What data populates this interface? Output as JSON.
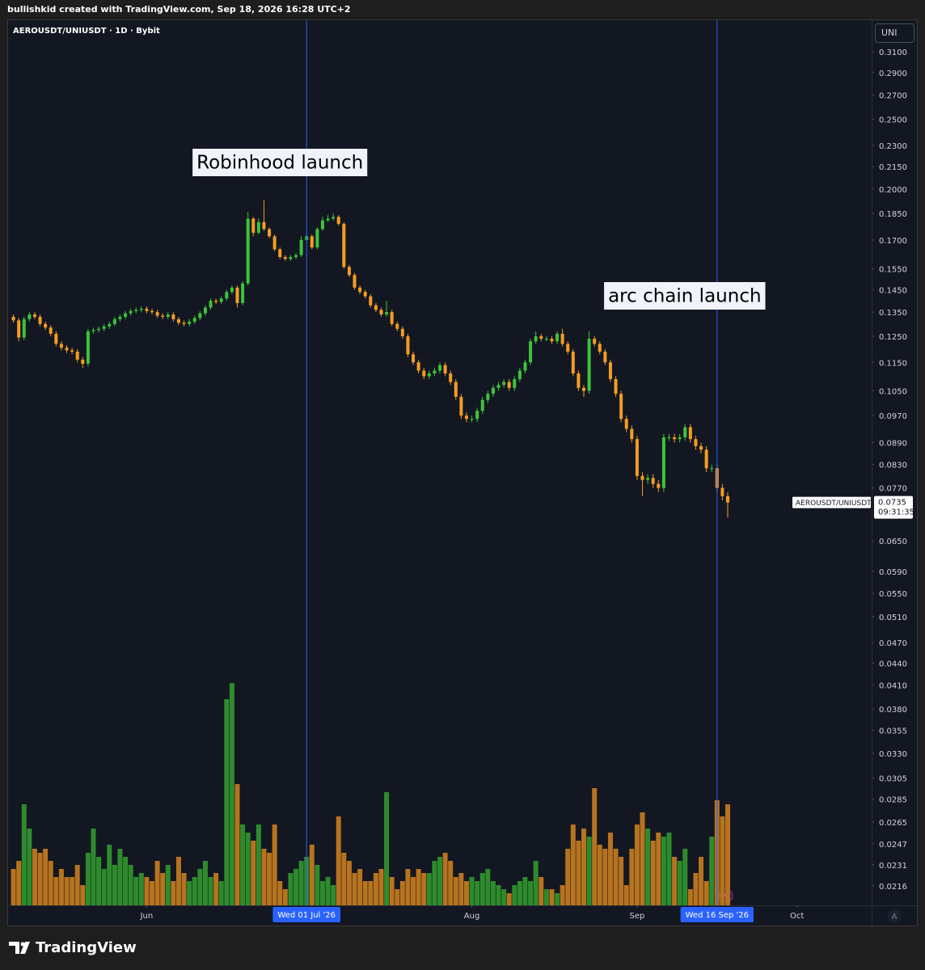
{
  "chart_data": {
    "type": "candlestick",
    "credit": "bullishkid created with TradingView.com, Sep 18, 2026 16:28 UTC+2",
    "title": "AEROUSDT/UNIUSDT · 1D · Bybit",
    "scale_label": "UNI",
    "symbol_label": "AEROUSDT/UNIUSDT",
    "countdown": "09:31:35",
    "brand": "TradingView",
    "auto_label": "A",
    "log_scale": true,
    "grid": false,
    "up_color": "#3cc43a",
    "down_color": "#f59c22",
    "volume_up_color": "#2e8b2c",
    "volume_down_color": "#b7731e",
    "line_color": "#2962ff",
    "x": [
      "2026-05-07",
      "2026-05-08",
      "2026-05-09",
      "2026-05-10",
      "2026-05-11",
      "2026-05-12",
      "2026-05-13",
      "2026-05-14",
      "2026-05-15",
      "2026-05-16",
      "2026-05-17",
      "2026-05-18",
      "2026-05-19",
      "2026-05-20",
      "2026-05-21",
      "2026-05-22",
      "2026-05-23",
      "2026-05-24",
      "2026-05-25",
      "2026-05-26",
      "2026-05-27",
      "2026-05-28",
      "2026-05-29",
      "2026-05-30",
      "2026-05-31",
      "2026-06-01",
      "2026-06-02",
      "2026-06-03",
      "2026-06-04",
      "2026-06-05",
      "2026-06-06",
      "2026-06-07",
      "2026-06-08",
      "2026-06-09",
      "2026-06-10",
      "2026-06-11",
      "2026-06-12",
      "2026-06-13",
      "2026-06-14",
      "2026-06-15",
      "2026-06-16",
      "2026-06-17",
      "2026-06-18",
      "2026-06-19",
      "2026-06-20",
      "2026-06-21",
      "2026-06-22",
      "2026-06-23",
      "2026-06-24",
      "2026-06-25",
      "2026-06-26",
      "2026-06-27",
      "2026-06-28",
      "2026-06-29",
      "2026-06-30",
      "2026-07-01",
      "2026-07-02",
      "2026-07-03",
      "2026-07-04",
      "2026-07-05",
      "2026-07-06",
      "2026-07-07",
      "2026-07-08",
      "2026-07-09",
      "2026-07-10",
      "2026-07-11",
      "2026-07-12",
      "2026-07-13",
      "2026-07-14",
      "2026-07-15",
      "2026-07-16",
      "2026-07-17",
      "2026-07-18",
      "2026-07-19",
      "2026-07-20",
      "2026-07-21",
      "2026-07-22",
      "2026-07-23",
      "2026-07-24",
      "2026-07-25",
      "2026-07-26",
      "2026-07-27",
      "2026-07-28",
      "2026-07-29",
      "2026-07-30",
      "2026-07-31",
      "2026-08-01",
      "2026-08-02",
      "2026-08-03",
      "2026-08-04",
      "2026-08-05",
      "2026-08-06",
      "2026-08-07",
      "2026-08-08",
      "2026-08-09",
      "2026-08-10",
      "2026-08-11",
      "2026-08-12",
      "2026-08-13",
      "2026-08-14",
      "2026-08-15",
      "2026-08-16",
      "2026-08-17",
      "2026-08-18",
      "2026-08-19",
      "2026-08-20",
      "2026-08-21",
      "2026-08-22",
      "2026-08-23",
      "2026-08-24",
      "2026-08-25",
      "2026-08-26",
      "2026-08-27",
      "2026-08-28",
      "2026-08-29",
      "2026-08-30",
      "2026-08-31",
      "2026-09-01",
      "2026-09-02",
      "2026-09-03",
      "2026-09-04",
      "2026-09-05",
      "2026-09-06",
      "2026-09-07",
      "2026-09-08",
      "2026-09-09",
      "2026-09-10",
      "2026-09-11",
      "2026-09-12",
      "2026-09-13",
      "2026-09-14",
      "2026-09-15",
      "2026-09-16",
      "2026-09-17",
      "2026-09-18"
    ],
    "open": [
      0.133,
      0.1315,
      0.1245,
      0.132,
      0.134,
      0.133,
      0.13,
      0.1285,
      0.126,
      0.122,
      0.1205,
      0.1195,
      0.119,
      0.116,
      0.1145,
      0.127,
      0.1275,
      0.128,
      0.129,
      0.13,
      0.132,
      0.133,
      0.1345,
      0.1355,
      0.136,
      0.1365,
      0.1355,
      0.135,
      0.1335,
      0.133,
      0.134,
      0.132,
      0.1305,
      0.13,
      0.131,
      0.1325,
      0.1345,
      0.137,
      0.14,
      0.1395,
      0.141,
      0.144,
      0.146,
      0.139,
      0.148,
      0.182,
      0.174,
      0.18,
      0.176,
      0.172,
      0.165,
      0.161,
      0.16,
      0.161,
      0.162,
      0.17,
      0.172,
      0.166,
      0.176,
      0.181,
      0.182,
      0.183,
      0.179,
      0.156,
      0.152,
      0.146,
      0.144,
      0.142,
      0.138,
      0.136,
      0.134,
      0.135,
      0.13,
      0.128,
      0.125,
      0.118,
      0.115,
      0.112,
      0.11,
      0.111,
      0.112,
      0.114,
      0.111,
      0.108,
      0.103,
      0.097,
      0.096,
      0.096,
      0.0985,
      0.102,
      0.104,
      0.106,
      0.107,
      0.108,
      0.106,
      0.109,
      0.112,
      0.115,
      0.123,
      0.125,
      0.124,
      0.124,
      0.123,
      0.126,
      0.122,
      0.119,
      0.111,
      0.106,
      0.105,
      0.124,
      0.122,
      0.119,
      0.115,
      0.109,
      0.104,
      0.096,
      0.093,
      0.09,
      0.08,
      0.079,
      0.0795,
      0.078,
      0.077,
      0.0905,
      0.0905,
      0.09,
      0.0905,
      0.0935,
      0.09,
      0.088,
      0.087,
      0.082,
      0.082,
      0.077,
      0.075
    ],
    "high": [
      0.134,
      0.1325,
      0.133,
      0.135,
      0.135,
      0.134,
      0.131,
      0.1295,
      0.127,
      0.123,
      0.1215,
      0.1205,
      0.12,
      0.117,
      0.128,
      0.1285,
      0.129,
      0.13,
      0.131,
      0.133,
      0.134,
      0.1355,
      0.1365,
      0.137,
      0.1375,
      0.1375,
      0.1365,
      0.136,
      0.1345,
      0.135,
      0.135,
      0.133,
      0.1315,
      0.132,
      0.1335,
      0.1355,
      0.138,
      0.141,
      0.141,
      0.142,
      0.145,
      0.147,
      0.147,
      0.149,
      0.186,
      0.183,
      0.182,
      0.193,
      0.177,
      0.173,
      0.166,
      0.162,
      0.162,
      0.163,
      0.172,
      0.173,
      0.173,
      0.177,
      0.183,
      0.184,
      0.185,
      0.184,
      0.18,
      0.157,
      0.153,
      0.147,
      0.145,
      0.143,
      0.139,
      0.137,
      0.14,
      0.136,
      0.131,
      0.129,
      0.126,
      0.119,
      0.116,
      0.113,
      0.112,
      0.113,
      0.115,
      0.115,
      0.112,
      0.109,
      0.104,
      0.098,
      0.097,
      0.0995,
      0.103,
      0.105,
      0.107,
      0.108,
      0.109,
      0.109,
      0.11,
      0.113,
      0.116,
      0.124,
      0.127,
      0.126,
      0.125,
      0.125,
      0.127,
      0.128,
      0.123,
      0.12,
      0.112,
      0.107,
      0.127,
      0.125,
      0.123,
      0.12,
      0.116,
      0.11,
      0.105,
      0.097,
      0.094,
      0.091,
      0.081,
      0.0805,
      0.0805,
      0.079,
      0.0915,
      0.0915,
      0.0915,
      0.0915,
      0.0945,
      0.0945,
      0.091,
      0.089,
      0.088,
      0.083,
      0.083,
      0.078,
      0.076
    ],
    "low": [
      0.1305,
      0.123,
      0.1235,
      0.131,
      0.132,
      0.129,
      0.1275,
      0.125,
      0.121,
      0.1195,
      0.1185,
      0.118,
      0.115,
      0.113,
      0.1135,
      0.126,
      0.1265,
      0.127,
      0.128,
      0.129,
      0.131,
      0.132,
      0.1335,
      0.1345,
      0.135,
      0.1345,
      0.134,
      0.1325,
      0.132,
      0.132,
      0.131,
      0.1295,
      0.129,
      0.129,
      0.13,
      0.1315,
      0.1335,
      0.136,
      0.1385,
      0.1385,
      0.14,
      0.143,
      0.137,
      0.138,
      0.147,
      0.172,
      0.173,
      0.175,
      0.171,
      0.164,
      0.16,
      0.159,
      0.159,
      0.16,
      0.161,
      0.169,
      0.165,
      0.165,
      0.175,
      0.18,
      0.181,
      0.178,
      0.155,
      0.151,
      0.145,
      0.143,
      0.141,
      0.137,
      0.135,
      0.133,
      0.133,
      0.129,
      0.127,
      0.124,
      0.117,
      0.114,
      0.111,
      0.109,
      0.109,
      0.11,
      0.111,
      0.11,
      0.107,
      0.102,
      0.096,
      0.095,
      0.095,
      0.095,
      0.0975,
      0.101,
      0.103,
      0.105,
      0.106,
      0.105,
      0.105,
      0.108,
      0.111,
      0.114,
      0.122,
      0.123,
      0.123,
      0.122,
      0.122,
      0.121,
      0.118,
      0.11,
      0.105,
      0.103,
      0.104,
      0.121,
      0.118,
      0.114,
      0.108,
      0.103,
      0.095,
      0.092,
      0.089,
      0.079,
      0.075,
      0.078,
      0.077,
      0.076,
      0.076,
      0.0895,
      0.089,
      0.089,
      0.0895,
      0.089,
      0.087,
      0.086,
      0.081,
      0.081,
      0.076,
      0.074,
      0.07
    ],
    "close": [
      0.1315,
      0.1245,
      0.132,
      0.134,
      0.133,
      0.13,
      0.1285,
      0.126,
      0.122,
      0.1205,
      0.1195,
      0.119,
      0.116,
      0.1145,
      0.127,
      0.1275,
      0.128,
      0.129,
      0.13,
      0.132,
      0.133,
      0.1345,
      0.1355,
      0.136,
      0.1365,
      0.1355,
      0.135,
      0.1335,
      0.133,
      0.134,
      0.132,
      0.1305,
      0.13,
      0.131,
      0.1325,
      0.1345,
      0.137,
      0.14,
      0.1395,
      0.141,
      0.144,
      0.146,
      0.139,
      0.148,
      0.182,
      0.174,
      0.18,
      0.176,
      0.172,
      0.165,
      0.161,
      0.16,
      0.161,
      0.162,
      0.17,
      0.172,
      0.166,
      0.176,
      0.181,
      0.182,
      0.183,
      0.179,
      0.156,
      0.152,
      0.146,
      0.144,
      0.142,
      0.138,
      0.136,
      0.134,
      0.135,
      0.13,
      0.128,
      0.125,
      0.118,
      0.115,
      0.112,
      0.11,
      0.111,
      0.112,
      0.114,
      0.111,
      0.108,
      0.103,
      0.097,
      0.096,
      0.096,
      0.0985,
      0.102,
      0.104,
      0.106,
      0.107,
      0.108,
      0.106,
      0.109,
      0.112,
      0.115,
      0.123,
      0.125,
      0.124,
      0.124,
      0.123,
      0.126,
      0.122,
      0.119,
      0.111,
      0.106,
      0.105,
      0.124,
      0.122,
      0.119,
      0.115,
      0.109,
      0.104,
      0.096,
      0.093,
      0.09,
      0.08,
      0.079,
      0.0795,
      0.078,
      0.077,
      0.0905,
      0.0905,
      0.09,
      0.0905,
      0.0935,
      0.09,
      0.088,
      0.087,
      0.082,
      0.082,
      0.077,
      0.075,
      0.0735
    ],
    "volume": [
      45,
      55,
      125,
      95,
      70,
      65,
      70,
      55,
      35,
      45,
      35,
      35,
      50,
      25,
      65,
      95,
      60,
      45,
      75,
      50,
      70,
      60,
      50,
      35,
      40,
      35,
      30,
      55,
      40,
      50,
      30,
      60,
      40,
      30,
      35,
      45,
      55,
      35,
      40,
      30,
      255,
      275,
      150,
      100,
      90,
      80,
      100,
      70,
      65,
      100,
      30,
      20,
      40,
      45,
      55,
      60,
      75,
      50,
      30,
      35,
      25,
      110,
      65,
      55,
      40,
      45,
      30,
      30,
      40,
      45,
      140,
      35,
      20,
      30,
      45,
      35,
      45,
      40,
      40,
      55,
      60,
      65,
      55,
      35,
      40,
      30,
      35,
      30,
      40,
      45,
      30,
      25,
      20,
      15,
      25,
      30,
      35,
      30,
      55,
      35,
      20,
      20,
      15,
      25,
      70,
      100,
      80,
      95,
      85,
      145,
      75,
      70,
      90,
      70,
      60,
      25,
      70,
      100,
      115,
      95,
      80,
      90,
      85,
      90,
      60,
      55,
      70,
      20,
      40,
      60,
      30,
      85,
      130,
      110,
      125
    ],
    "xlim": [
      "2026-05-06",
      "2026-10-15"
    ],
    "xticks": [
      {
        "value": "2026-06-01",
        "label": "Jun"
      },
      {
        "value": "2026-08-01",
        "label": "Aug"
      },
      {
        "value": "2026-09-01",
        "label": "Sep"
      },
      {
        "value": "2026-10-01",
        "label": "Oct"
      }
    ],
    "ylim": [
      0.0203,
      0.343
    ],
    "yticks": [
      {
        "value": 0.31,
        "label": "0.3100"
      },
      {
        "value": 0.29,
        "label": "0.2900"
      },
      {
        "value": 0.27,
        "label": "0.2700"
      },
      {
        "value": 0.25,
        "label": "0.2500"
      },
      {
        "value": 0.23,
        "label": "0.2300"
      },
      {
        "value": 0.215,
        "label": "0.2150"
      },
      {
        "value": 0.2,
        "label": "0.2000"
      },
      {
        "value": 0.185,
        "label": "0.1850"
      },
      {
        "value": 0.17,
        "label": "0.1700"
      },
      {
        "value": 0.155,
        "label": "0.1550"
      },
      {
        "value": 0.145,
        "label": "0.1450"
      },
      {
        "value": 0.135,
        "label": "0.1350"
      },
      {
        "value": 0.125,
        "label": "0.1250"
      },
      {
        "value": 0.115,
        "label": "0.1150"
      },
      {
        "value": 0.105,
        "label": "0.1050"
      },
      {
        "value": 0.097,
        "label": "0.0970"
      },
      {
        "value": 0.089,
        "label": "0.0890"
      },
      {
        "value": 0.083,
        "label": "0.0830"
      },
      {
        "value": 0.077,
        "label": "0.0770"
      },
      {
        "value": 0.065,
        "label": "0.0650"
      },
      {
        "value": 0.059,
        "label": "0.0590"
      },
      {
        "value": 0.055,
        "label": "0.0550"
      },
      {
        "value": 0.051,
        "label": "0.0510"
      },
      {
        "value": 0.047,
        "label": "0.0470"
      },
      {
        "value": 0.044,
        "label": "0.0440"
      },
      {
        "value": 0.041,
        "label": "0.0410"
      },
      {
        "value": 0.038,
        "label": "0.0380"
      },
      0.0355,
      {
        "value": 0.033,
        "label": "0.0330"
      },
      0.0305,
      0.0285,
      0.0265,
      0.0247,
      0.0231,
      0.0216
    ],
    "annotations": [
      {
        "date": "2026-07-01",
        "date_label": "Wed 01 Jul '26",
        "text": "Robinhood launch"
      },
      {
        "date": "2026-09-16",
        "date_label": "Wed 16 Sep '26",
        "text": "arc chain launch"
      }
    ]
  }
}
